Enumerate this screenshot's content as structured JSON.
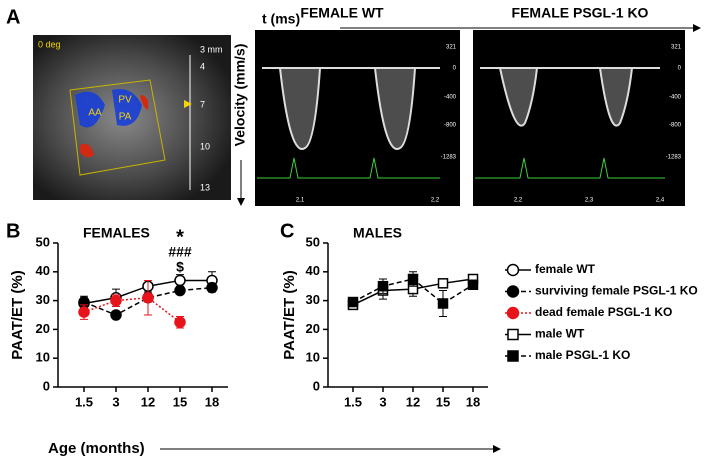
{
  "panel_a": {
    "label": "A",
    "time_axis": "t (ms)",
    "velocity_axis": "Velocity (mm/s)",
    "echo": {
      "angle": "0 deg",
      "structures": [
        "AA",
        "PV",
        "PA"
      ],
      "depth_unit": "3 mm",
      "depth_ticks": [
        "4",
        "7",
        "10",
        "13"
      ]
    },
    "doppler": [
      {
        "title": "FEMALE WT",
        "scale": [
          "321",
          "0",
          "-400",
          "-800",
          "-1283"
        ],
        "times": [
          "2,1",
          "2,2"
        ]
      },
      {
        "title": "FEMALE PSGL-1 KO",
        "scale": [
          "321",
          "0",
          "-400",
          "-800",
          "-1283"
        ],
        "times": [
          "2,2",
          "2,3",
          "2,4"
        ]
      }
    ]
  },
  "chart_data": [
    {
      "type": "line",
      "panel": "B",
      "title": "FEMALES",
      "ylabel": "PAAT/ET (%)",
      "xlabel": "Age (months)",
      "categories": [
        "1.5",
        "3",
        "12",
        "15",
        "18"
      ],
      "ylim": [
        0,
        50
      ],
      "yticks": [
        0,
        10,
        20,
        30,
        40,
        50
      ],
      "annotations": [
        "*",
        "###",
        "$"
      ],
      "series": [
        {
          "name": "female WT",
          "color": "#000000",
          "marker": "circle",
          "filled": false,
          "dash": "solid",
          "values": [
            29,
            31,
            35,
            37,
            37
          ],
          "errors": [
            2.5,
            3,
            2,
            2,
            3
          ]
        },
        {
          "name": "surviving female PSGL-1 KO",
          "color": "#000000",
          "marker": "circle",
          "filled": true,
          "dash": "dashed",
          "values": [
            29.5,
            25,
            31,
            33.5,
            34.5
          ],
          "errors": [
            1.5,
            1,
            1.5,
            1,
            1.5
          ]
        },
        {
          "name": "dead female PSGL-1 KO",
          "color": "#e8141b",
          "marker": "circle",
          "filled": true,
          "dash": "dotted",
          "values": [
            26,
            30,
            31,
            22.5,
            null
          ],
          "errors": [
            2.5,
            2,
            6,
            2,
            null
          ]
        }
      ]
    },
    {
      "type": "line",
      "panel": "C",
      "title": "MALES",
      "ylabel": "PAAT/ET (%)",
      "categories": [
        "1.5",
        "3",
        "12",
        "15",
        "18"
      ],
      "ylim": [
        0,
        50
      ],
      "yticks": [
        0,
        10,
        20,
        30,
        40,
        50
      ],
      "series": [
        {
          "name": "male WT",
          "color": "#000000",
          "marker": "square",
          "filled": false,
          "dash": "solid",
          "values": [
            28.5,
            33.5,
            34,
            36,
            37.5
          ],
          "errors": [
            1.5,
            3,
            2.5,
            1.5,
            1.5
          ]
        },
        {
          "name": "male PSGL-1 KO",
          "color": "#000000",
          "marker": "square",
          "filled": true,
          "dash": "dashed",
          "values": [
            29.5,
            35,
            37.5,
            29,
            35.5
          ],
          "errors": [
            1.5,
            2.5,
            2.5,
            4.5,
            1.5
          ]
        }
      ]
    }
  ]
}
